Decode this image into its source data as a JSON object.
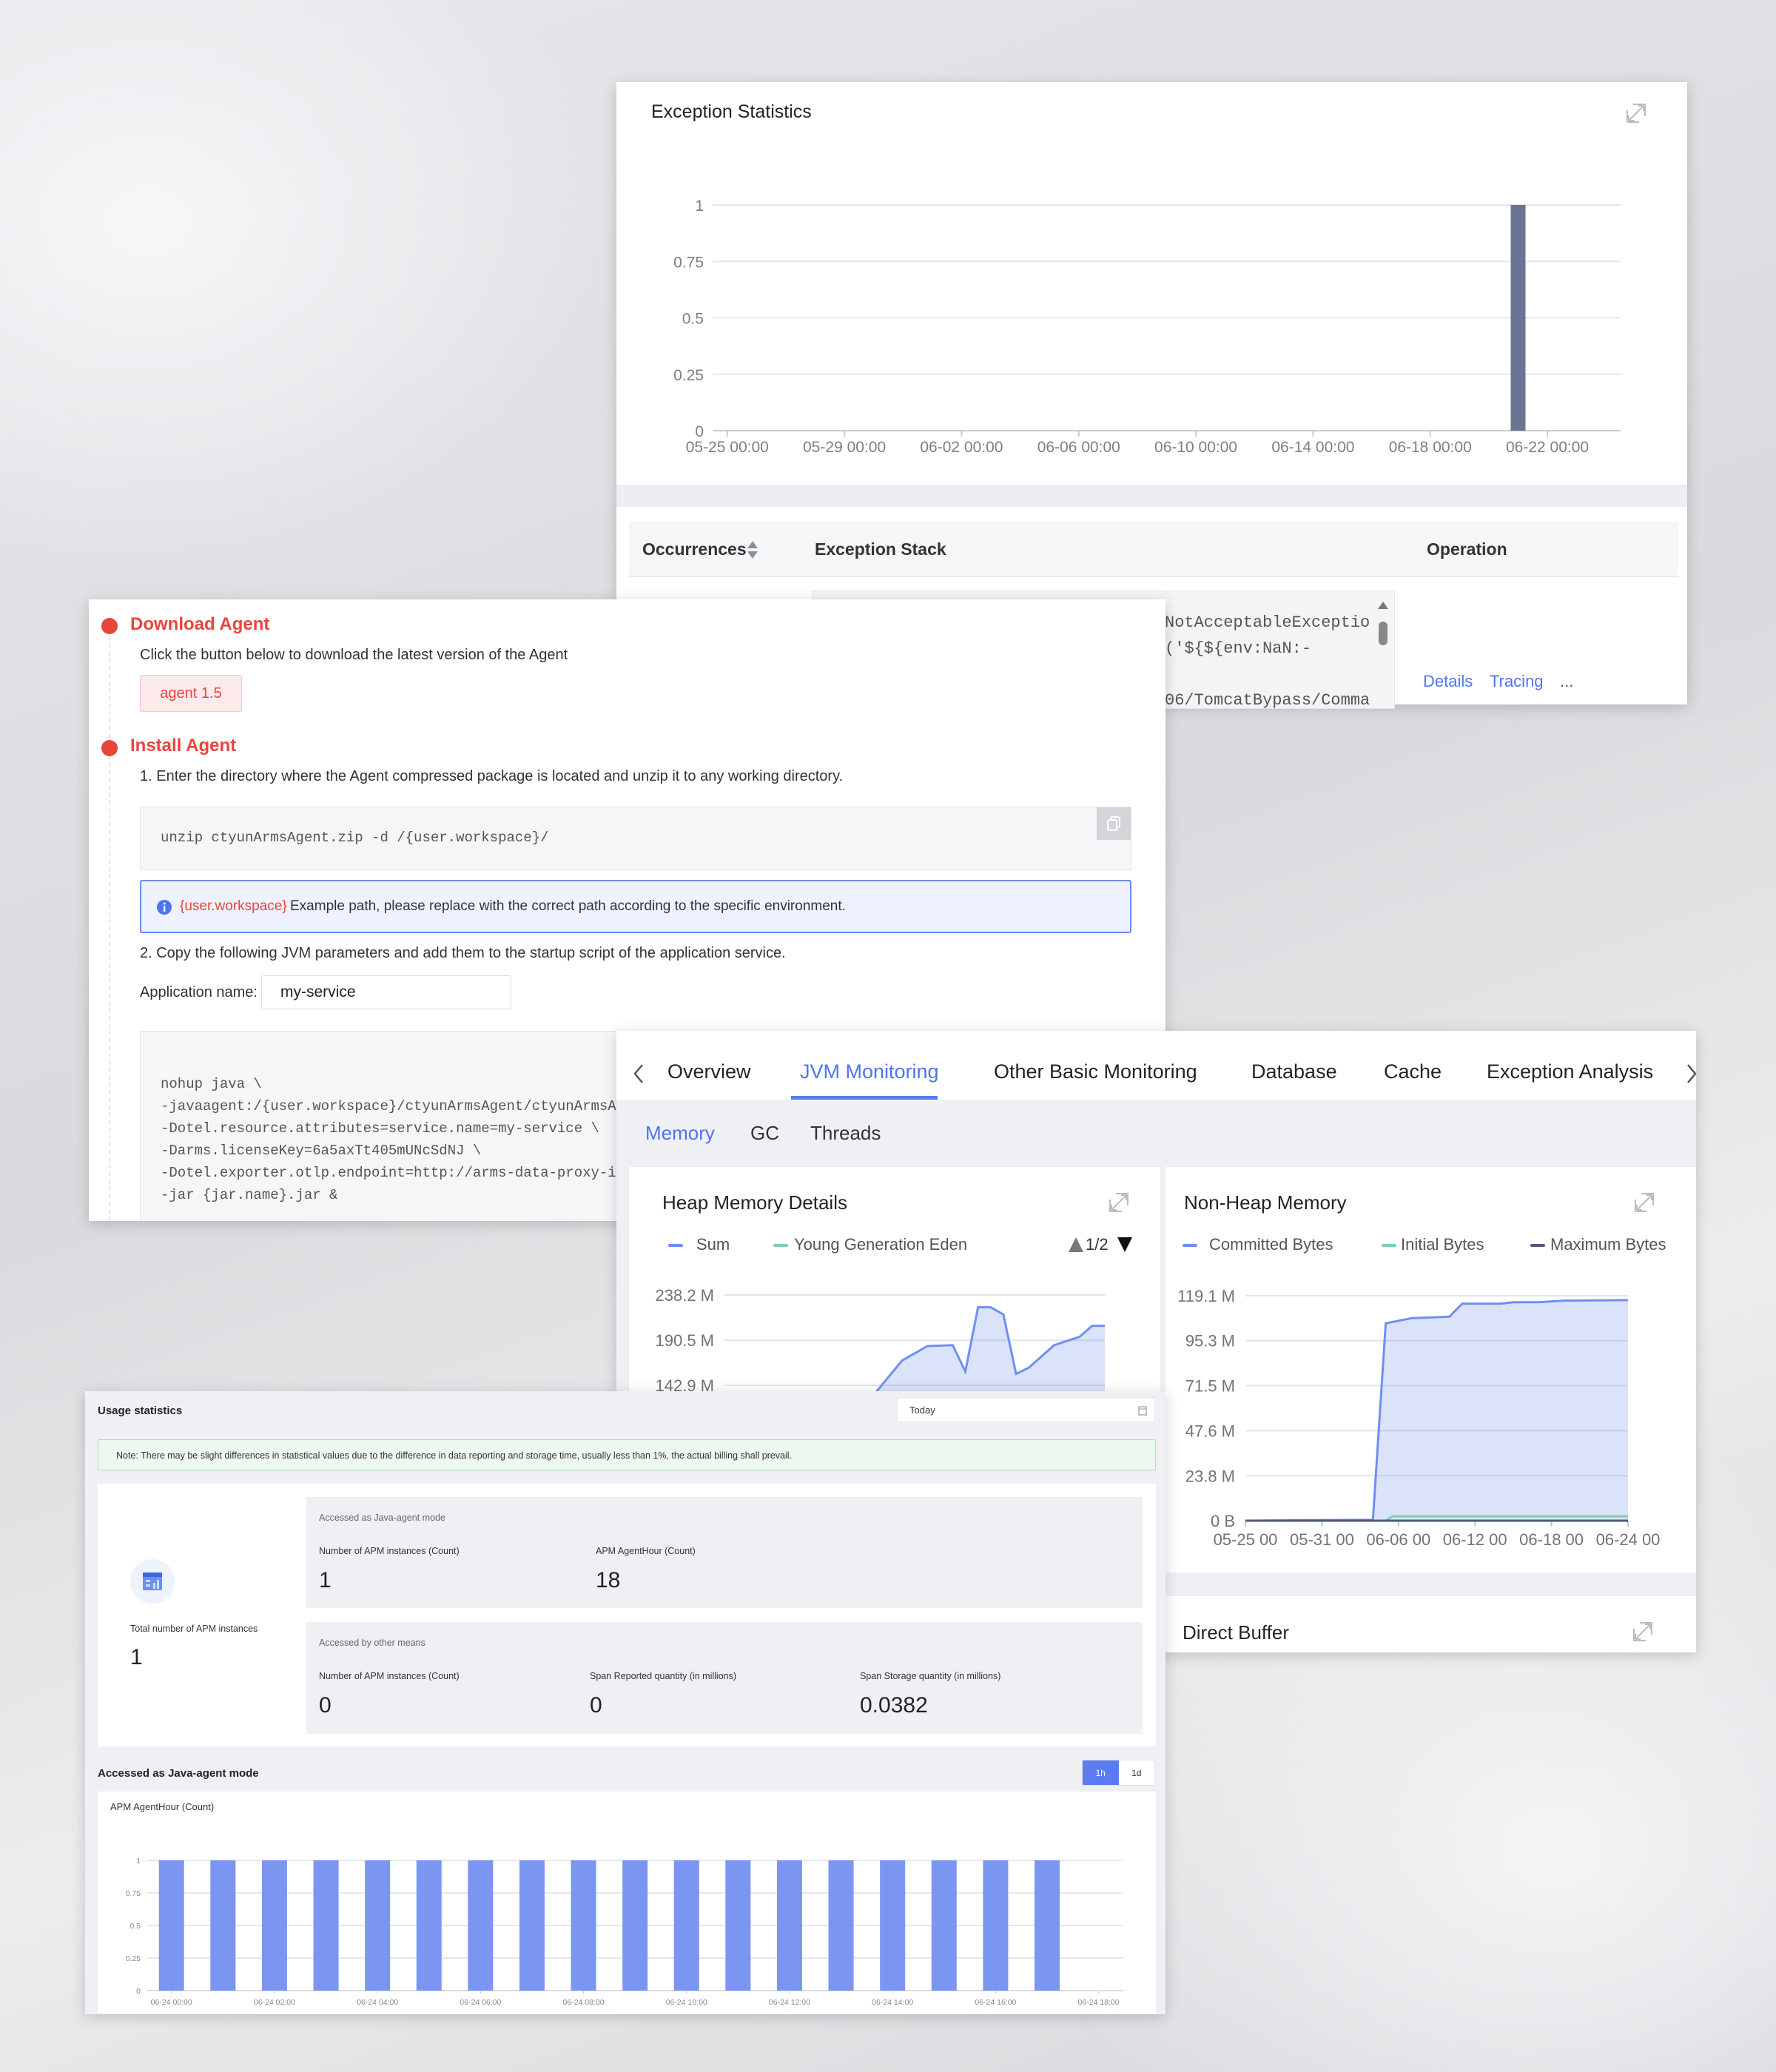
{
  "colors": {
    "accent": "#5b7cf0",
    "danger": "#e8453c",
    "line_blue": "#6f8ff0",
    "line_green": "#7fcfa6",
    "line_dark": "#4f5b78",
    "exception_bar": "#6b7591",
    "usage_bar": "#7a96f0"
  },
  "exception_panel": {
    "title": "Exception Statistics",
    "table": {
      "headers": {
        "occurrences": "Occurrences",
        "stack": "Exception Stack",
        "operation": "Operation"
      },
      "row": {
        "stack_lines": [
          "NotAcceptableExceptio",
          "('${${env:NaN:-",
          "",
          "06/TomcatBypass/Comma"
        ],
        "actions": [
          "Details",
          "Tracing",
          "..."
        ]
      }
    }
  },
  "agent_panel": {
    "download": {
      "title": "Download Agent",
      "desc": "Click the button below to download the latest version of the Agent",
      "button": "agent 1.5"
    },
    "install": {
      "title": "Install Agent",
      "step1": "1. Enter the directory where the Agent compressed package is located and unzip it to any working directory.",
      "unzip_cmd": "unzip ctyunArmsAgent.zip -d /{user.workspace}/",
      "info_var": "{user.workspace}",
      "info_text": "Example path, please replace with the correct path according to the specific environment.",
      "step2": "2. Copy the following JVM parameters and add them to the startup script of the application service.",
      "app_name_label": "Application name:",
      "app_name_value": "my-service",
      "jvm_lines": [
        "nohup java \\",
        "-javaagent:/{user.workspace}/ctyunArmsAgent/ctyunArmsAgent.ja",
        "-Dotel.resource.attributes=service.name=my-service \\",
        "-Darms.licenseKey=6a5axTt405mUNcSdNJ \\",
        "-Dotel.exporter.otlp.endpoint=http://arms-data-proxy-inner-x",
        "-jar {jar.name}.jar &"
      ]
    }
  },
  "jvm_panel": {
    "tabs": [
      "Overview",
      "JVM Monitoring",
      "Other Basic Monitoring",
      "Database",
      "Cache",
      "Exception Analysis"
    ],
    "active_tab": "JVM Monitoring",
    "subtabs": [
      "Memory",
      "GC",
      "Threads"
    ],
    "active_subtab": "Memory",
    "heap": {
      "title": "Heap Memory Details",
      "legend": [
        "Sum",
        "Young Generation Eden"
      ],
      "pager": "1/2"
    },
    "nonheap": {
      "title": "Non-Heap Memory",
      "legend": [
        "Committed Bytes",
        "Initial Bytes",
        "Maximum Bytes"
      ]
    },
    "direct_buffer": {
      "title": "Direct Buffer"
    }
  },
  "usage_panel": {
    "title": "Usage statistics",
    "date_value": "Today",
    "note": "Note: There may be slight differences in statistical values due to the difference in data reporting and storage time, usually less than 1%, the actual billing shall prevail.",
    "total_label": "Total number of APM instances",
    "total_value": "1",
    "java_agent": {
      "title": "Accessed as Java-agent mode",
      "items": [
        {
          "label": "Number of APM instances (Count)",
          "value": "1"
        },
        {
          "label": "APM AgentHour (Count)",
          "value": "18"
        }
      ]
    },
    "other": {
      "title": "Accessed by other means",
      "items": [
        {
          "label": "Number of APM instances (Count)",
          "value": "0"
        },
        {
          "label": "Span Reported quantity (in millions)",
          "value": "0"
        },
        {
          "label": "Span Storage quantity (in millions)",
          "value": "0.0382"
        }
      ]
    },
    "chart_section_title": "Accessed as Java-agent mode",
    "granularity": [
      "1h",
      "1d"
    ],
    "active_granularity": "1h"
  },
  "chart_data": [
    {
      "id": "exception",
      "type": "bar",
      "title": "Exception Statistics",
      "x_ticks": [
        "05-25 00:00",
        "05-29 00:00",
        "06-02 00:00",
        "06-06 00:00",
        "06-10 00:00",
        "06-14 00:00",
        "06-18 00:00",
        "06-22 00:00"
      ],
      "xlim": [
        "05-24 12:00",
        "06-24 12:00"
      ],
      "y_ticks": [
        "0",
        "0.25",
        "0.5",
        "0.75",
        "1"
      ],
      "ylim": [
        0,
        1
      ],
      "grid": true,
      "points": [
        {
          "x": "06-21 00:00",
          "y": 1
        }
      ]
    },
    {
      "id": "heap",
      "type": "area",
      "title": "Heap Memory Details",
      "y_ticks": [
        "238.2 M",
        "190.5 M",
        "142.9 M"
      ],
      "y_tick_values": [
        238.2,
        190.5,
        142.9
      ],
      "ylim": [
        0,
        238.2
      ],
      "xlim": [
        "05-25 00:00",
        "06-24 00:00"
      ],
      "unit": "M",
      "grid": true,
      "legend": "top",
      "series": [
        {
          "name": "Sum",
          "points": [
            [
              "06-06 00:00",
              136.4
            ],
            [
              "06-08 00:00",
              168.9
            ],
            [
              "06-10 00:00",
              184.2
            ],
            [
              "06-12 00:00",
              185.2
            ],
            [
              "06-13 00:00",
              157.5
            ],
            [
              "06-14 00:00",
              225.2
            ],
            [
              "06-15 00:00",
              225.2
            ],
            [
              "06-16 00:00",
              217.7
            ],
            [
              "06-17 00:00",
              154.9
            ],
            [
              "06-18 00:00",
              161.4
            ],
            [
              "06-20 00:00",
              185.2
            ],
            [
              "06-22 00:00",
              194.0
            ],
            [
              "06-23 00:00",
              205.7
            ],
            [
              "06-24 00:00",
              205.7
            ]
          ]
        }
      ]
    },
    {
      "id": "nonheap",
      "type": "area",
      "title": "Non-Heap Memory",
      "y_ticks": [
        "0 B",
        "23.8 M",
        "47.6 M",
        "71.5 M",
        "95.3 M",
        "119.1 M"
      ],
      "y_tick_values": [
        0,
        23.8,
        47.6,
        71.5,
        95.3,
        119.1
      ],
      "ylim": [
        0,
        119.1
      ],
      "x_ticks": [
        "05-25 00",
        "05-31 00",
        "06-06 00",
        "06-12 00",
        "06-18 00",
        "06-24 00"
      ],
      "xlim": [
        "05-25 00:00",
        "06-24 00:00"
      ],
      "unit": "M",
      "grid": true,
      "legend": "top",
      "series": [
        {
          "name": "Committed Bytes",
          "points": [
            [
              "05-25 00:00",
              0
            ],
            [
              "06-04 00:00",
              0.5
            ],
            [
              "06-05 00:00",
              104.5
            ],
            [
              "06-07 00:00",
              107.2
            ],
            [
              "06-10 00:00",
              108.0
            ],
            [
              "06-11 00:00",
              114.9
            ],
            [
              "06-14 00:00",
              114.9
            ],
            [
              "06-15 00:00",
              115.7
            ],
            [
              "06-17 00:00",
              115.7
            ],
            [
              "06-19 00:00",
              116.5
            ],
            [
              "06-24 00:00",
              116.8
            ]
          ]
        },
        {
          "name": "Initial Bytes",
          "points": [
            [
              "05-25 00:00",
              0
            ],
            [
              "06-05 00:00",
              0
            ],
            [
              "06-05 12:00",
              2.3
            ],
            [
              "06-24 00:00",
              2.3
            ]
          ]
        },
        {
          "name": "Maximum Bytes",
          "points": [
            [
              "05-25 00:00",
              0
            ],
            [
              "06-24 00:00",
              0
            ]
          ]
        }
      ]
    },
    {
      "id": "agenthour",
      "type": "bar",
      "title": "APM AgentHour (Count)",
      "x_ticks": [
        "06-24 00:00",
        "06-24 02:00",
        "06-24 04:00",
        "06-24 06:00",
        "06-24 08:00",
        "06-24 10:00",
        "06-24 12:00",
        "06-24 14:00",
        "06-24 16:00",
        "06-24 18:00"
      ],
      "y_ticks": [
        "0",
        "0.25",
        "0.5",
        "0.75",
        "1"
      ],
      "ylim": [
        0,
        1
      ],
      "grid": true,
      "categories": [
        "06-24 00:00",
        "06-24 01:00",
        "06-24 02:00",
        "06-24 03:00",
        "06-24 04:00",
        "06-24 05:00",
        "06-24 06:00",
        "06-24 07:00",
        "06-24 08:00",
        "06-24 09:00",
        "06-24 10:00",
        "06-24 11:00",
        "06-24 12:00",
        "06-24 13:00",
        "06-24 14:00",
        "06-24 15:00",
        "06-24 16:00",
        "06-24 17:00"
      ],
      "values": [
        1,
        1,
        1,
        1,
        1,
        1,
        1,
        1,
        1,
        1,
        1,
        1,
        1,
        1,
        1,
        1,
        1,
        1
      ]
    }
  ]
}
